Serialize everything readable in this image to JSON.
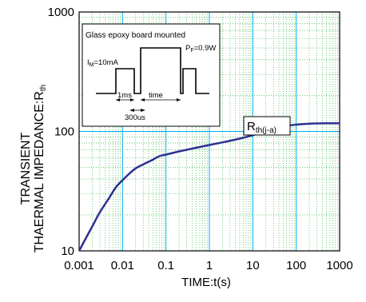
{
  "chart_data": {
    "type": "line",
    "xlabel": "TIME:t(s)",
    "ylabel_line1": "TRANSIENT",
    "ylabel_line2_main": "THAERMAL IMPEDANCE:R",
    "ylabel_line2_sub": "th",
    "x_scale": "log",
    "y_scale": "log",
    "xlim": [
      0.001,
      1000
    ],
    "ylim": [
      10,
      1000
    ],
    "x_ticks": [
      "0.001",
      "0.01",
      "0.1",
      "1",
      "10",
      "100",
      "1000"
    ],
    "y_ticks": [
      "10",
      "100",
      "1000"
    ],
    "grid": "major solid cyan, minor dotted green",
    "series": [
      {
        "color": "#2e3192",
        "x": [
          0.001,
          0.002,
          0.003,
          0.005,
          0.007,
          0.01,
          0.015,
          0.02,
          0.03,
          0.05,
          0.07,
          0.1,
          0.2,
          0.5,
          1,
          2,
          5,
          10,
          20,
          50,
          100,
          200,
          500,
          1000
        ],
        "y": [
          10,
          16,
          21,
          28,
          34,
          39,
          45,
          49,
          53,
          58,
          62,
          64,
          68,
          73,
          77,
          81,
          87,
          93,
          100,
          110,
          114,
          116,
          117,
          117
        ]
      }
    ],
    "annotation": {
      "label_main": "R",
      "label_sub": "th(j-a)",
      "points_to": [
        30,
        104
      ]
    },
    "inset": {
      "title": "Glass epoxy board mounted",
      "im_main": "I",
      "im_sub": "M",
      "im_value": "=10mA",
      "pf_main": "P",
      "pf_sub": "F",
      "pf_value": "=0.9W",
      "label_1ms": "1ms",
      "label_time": "time",
      "label_300us": "300us"
    }
  }
}
